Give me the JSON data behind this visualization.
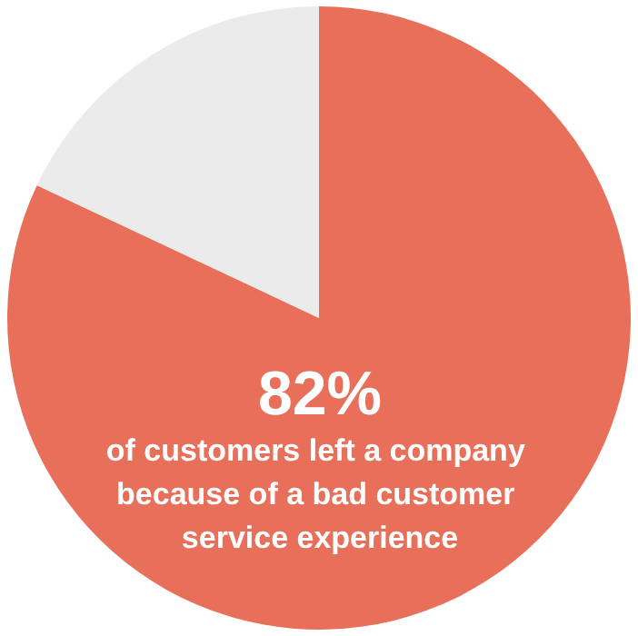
{
  "chart_data": {
    "type": "pie",
    "categories": [
      null,
      null
    ],
    "values": [
      82,
      18
    ],
    "colors": [
      "#e8705a",
      "#ebebeb"
    ],
    "value_labels": [
      "82%",
      null
    ],
    "annotations": [
      "of customers left a company because of a bad customer service experience"
    ]
  }
}
